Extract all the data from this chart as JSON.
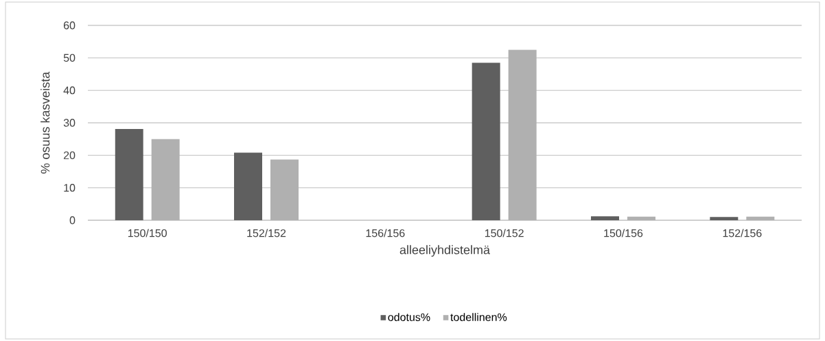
{
  "chart_data": {
    "type": "bar",
    "xlabel": "alleeliyhdistelmä",
    "ylabel": "% osuus kasveista",
    "categories": [
      "150/150",
      "152/152",
      "156/156",
      "150/152",
      "150/156",
      "152/156"
    ],
    "series": [
      {
        "name": "odotus%",
        "color": "#5f5f5f",
        "values": [
          28.1,
          20.8,
          0,
          48.5,
          1.2,
          1.0
        ]
      },
      {
        "name": "todellinen%",
        "color": "#b0b0b0",
        "values": [
          25,
          18.7,
          0,
          52.5,
          1.1,
          1.1
        ]
      }
    ],
    "ylim": [
      0,
      60
    ],
    "yticks": [
      0,
      10,
      20,
      30,
      40,
      50,
      60
    ],
    "grid": "y",
    "legend": "bottom"
  }
}
